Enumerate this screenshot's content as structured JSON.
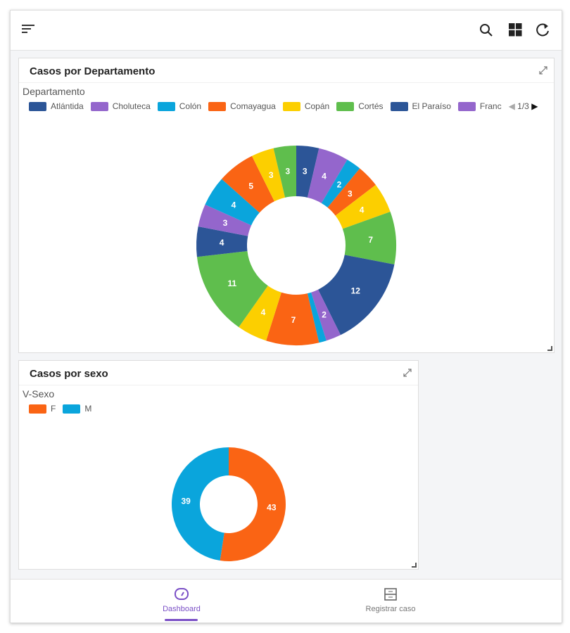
{
  "toolbar": {
    "icons": [
      "menu-icon",
      "search-icon",
      "grid-icon",
      "refresh-icon"
    ]
  },
  "card1": {
    "title": "Casos por Departamento",
    "legend_title": "Departamento",
    "legend": [
      {
        "label": "Atlántida",
        "color": "#2c5597"
      },
      {
        "label": "Choluteca",
        "color": "#9466cc"
      },
      {
        "label": "Colón",
        "color": "#0aa5dc"
      },
      {
        "label": "Comayagua",
        "color": "#fa6414"
      },
      {
        "label": "Copán",
        "color": "#fccf00"
      },
      {
        "label": "Cortés",
        "color": "#5fbe4d"
      },
      {
        "label": "El Paraíso",
        "color": "#2c5597"
      },
      {
        "label": "Franc",
        "color": "#9466cc"
      }
    ],
    "pager": "1/3"
  },
  "card2": {
    "title": "Casos por sexo",
    "legend_title": "V-Sexo",
    "legend": [
      {
        "label": "F",
        "color": "#fa6414"
      },
      {
        "label": "M",
        "color": "#0aa5dc"
      }
    ]
  },
  "chart_data": [
    {
      "type": "pie",
      "title": "Casos por Departamento",
      "legend_title": "Departamento",
      "donut": true,
      "values": [
        3,
        4,
        2,
        3,
        4,
        7,
        12,
        2,
        1,
        7,
        4,
        11,
        4,
        3,
        4,
        5,
        3,
        3
      ],
      "colors": [
        "#2c5597",
        "#9466cc",
        "#0aa5dc",
        "#fa6414",
        "#fccf00",
        "#5fbe4d"
      ]
    },
    {
      "type": "pie",
      "title": "Casos por sexo",
      "legend_title": "V-Sexo",
      "donut": true,
      "categories": [
        "F",
        "M"
      ],
      "values": [
        43,
        39
      ],
      "colors": [
        "#fa6414",
        "#0aa5dc"
      ]
    }
  ],
  "nav": {
    "items": [
      {
        "label": "Dashboard",
        "active": true
      },
      {
        "label": "Registrar caso",
        "active": false
      }
    ]
  }
}
